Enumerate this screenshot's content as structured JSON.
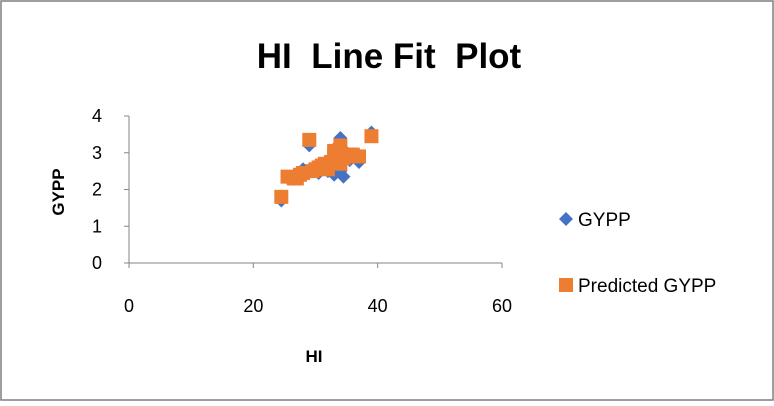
{
  "chart_data": {
    "type": "scatter",
    "title": "HI  Line Fit  Plot",
    "xlabel": "HI",
    "ylabel": "GYPP",
    "xlim": [
      0,
      60
    ],
    "ylim": [
      0,
      4
    ],
    "xticks": [
      "0",
      "20",
      "40",
      "60"
    ],
    "yticks": [
      "0",
      "1",
      "2",
      "3",
      "4"
    ],
    "grid": false,
    "legend_position": "right",
    "series": [
      {
        "name": "GYPP",
        "marker": "diamond",
        "color": "#4472C4",
        "points": [
          [
            24.5,
            1.7
          ],
          [
            25.5,
            2.35
          ],
          [
            26.5,
            2.3
          ],
          [
            27.0,
            2.4
          ],
          [
            27.5,
            2.45
          ],
          [
            28.0,
            2.55
          ],
          [
            29.0,
            3.2
          ],
          [
            29.5,
            2.5
          ],
          [
            30.0,
            2.6
          ],
          [
            30.5,
            2.45
          ],
          [
            31.0,
            2.7
          ],
          [
            31.5,
            2.65
          ],
          [
            32.0,
            2.5
          ],
          [
            32.5,
            2.8
          ],
          [
            33.0,
            3.1
          ],
          [
            33.0,
            2.4
          ],
          [
            33.5,
            2.7
          ],
          [
            34.0,
            3.4
          ],
          [
            34.0,
            2.5
          ],
          [
            34.5,
            2.35
          ],
          [
            35.0,
            3.0
          ],
          [
            35.5,
            2.8
          ],
          [
            36.0,
            2.9
          ],
          [
            37.0,
            2.75
          ],
          [
            39.0,
            3.55
          ]
        ]
      },
      {
        "name": "Predicted GYPP",
        "marker": "square",
        "color": "#ED7D31",
        "points": [
          [
            24.5,
            1.8
          ],
          [
            25.5,
            2.35
          ],
          [
            26.5,
            2.3
          ],
          [
            27.0,
            2.3
          ],
          [
            27.5,
            2.4
          ],
          [
            28.0,
            2.45
          ],
          [
            29.0,
            3.35
          ],
          [
            29.5,
            2.5
          ],
          [
            30.0,
            2.55
          ],
          [
            30.5,
            2.6
          ],
          [
            31.0,
            2.65
          ],
          [
            31.5,
            2.7
          ],
          [
            32.0,
            2.55
          ],
          [
            32.5,
            2.75
          ],
          [
            33.0,
            2.9
          ],
          [
            33.0,
            3.05
          ],
          [
            33.5,
            2.8
          ],
          [
            34.0,
            3.2
          ],
          [
            34.0,
            2.7
          ],
          [
            34.5,
            2.85
          ],
          [
            35.0,
            2.9
          ],
          [
            35.5,
            2.95
          ],
          [
            36.0,
            2.95
          ],
          [
            37.0,
            2.9
          ],
          [
            39.0,
            3.45
          ]
        ]
      }
    ]
  }
}
